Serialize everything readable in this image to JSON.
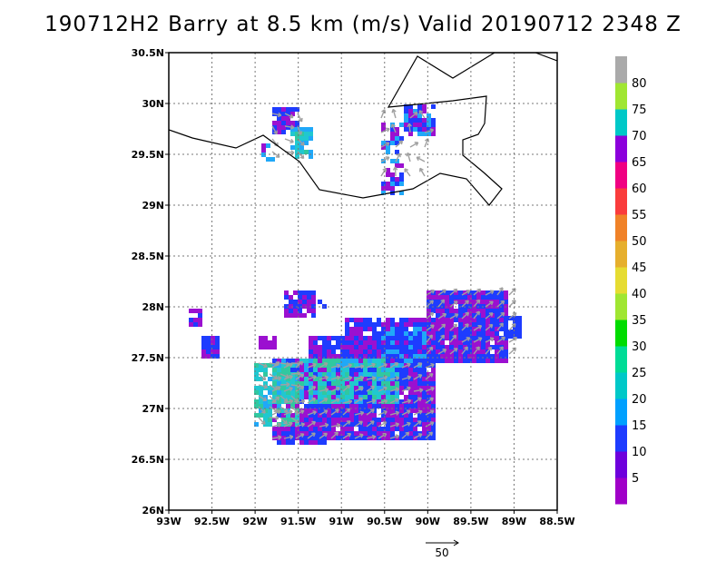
{
  "title": "190712H2  Barry  at 8.5 km (m/s)  Valid 20190712  2348  Z",
  "map": {
    "lon_labels": [
      "93W",
      "92.5W",
      "92W",
      "91.5W",
      "91W",
      "90.5W",
      "90W",
      "89.5W",
      "89W",
      "88.5W"
    ],
    "lat_labels": [
      "26N",
      "26.5N",
      "27N",
      "27.5N",
      "28N",
      "28.5N",
      "29N",
      "29.5N",
      "30N",
      "30.5N"
    ],
    "lon_range": [
      -93,
      -88.5
    ],
    "lat_range": [
      26,
      30.5
    ],
    "grid": "dotted",
    "coastline_color": "#000000"
  },
  "colorbar": {
    "levels": [
      "5",
      "10",
      "15",
      "20",
      "25",
      "30",
      "35",
      "40",
      "45",
      "50",
      "55",
      "60",
      "65",
      "70",
      "75",
      "80"
    ],
    "colors": [
      "#a000c8",
      "#6e00dc",
      "#1e3cff",
      "#00a0ff",
      "#00c8c8",
      "#00dc96",
      "#00dc00",
      "#a0e632",
      "#e6dc32",
      "#e6af2d",
      "#f08228",
      "#fa3c3c",
      "#f00082",
      "#8c00dc",
      "#00c8c8",
      "#a0e632",
      "#aaaaaa"
    ]
  },
  "reference_vector": {
    "label": "50"
  },
  "colors": {
    "arrow": "#a0a0a0",
    "purple": "#9b10d0",
    "blue": "#1e3cff",
    "light_blue": "#20a8f8",
    "cyan": "#20c8d0",
    "green": "#30c8a0"
  }
}
